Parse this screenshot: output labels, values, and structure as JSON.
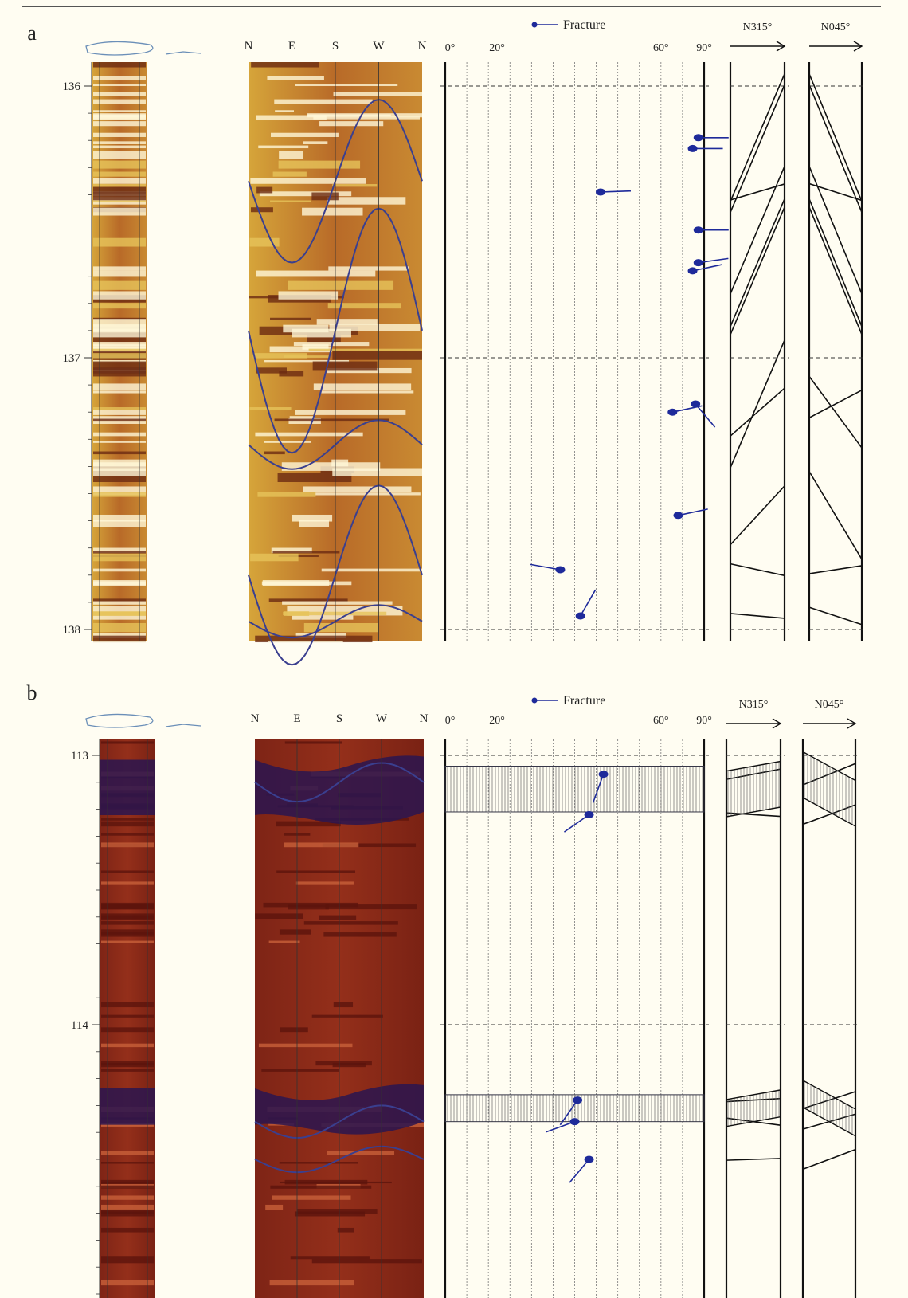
{
  "panels": [
    {
      "id": "a",
      "label": "a",
      "depth_labels": [
        "136",
        "137",
        "138"
      ],
      "depth_top": 135.93,
      "depth_bottom": 138.05,
      "compass": [
        "N",
        "E",
        "S",
        "W",
        "N"
      ],
      "dip_ticks": [
        "0°",
        "20°",
        "60°",
        "90°"
      ],
      "legend_label": "Fracture",
      "azimuth_labels": [
        "N315°",
        "N045°"
      ],
      "image_theme": "yellow-brown",
      "fractures": [
        {
          "depth": 136.19,
          "dip": 88,
          "azimuth": 90
        },
        {
          "depth": 136.23,
          "dip": 86,
          "azimuth": 90
        },
        {
          "depth": 136.39,
          "dip": 54,
          "azimuth": 88
        },
        {
          "depth": 136.53,
          "dip": 88,
          "azimuth": 90
        },
        {
          "depth": 136.65,
          "dip": 88,
          "azimuth": 82
        },
        {
          "depth": 136.68,
          "dip": 86,
          "azimuth": 78
        },
        {
          "depth": 137.17,
          "dip": 87,
          "azimuth": 140
        },
        {
          "depth": 137.2,
          "dip": 79,
          "azimuth": 78
        },
        {
          "depth": 137.58,
          "dip": 81,
          "azimuth": 78
        },
        {
          "depth": 137.78,
          "dip": 40,
          "azimuth": 280
        },
        {
          "depth": 137.95,
          "dip": 47,
          "azimuth": 30
        }
      ]
    },
    {
      "id": "b",
      "label": "b",
      "depth_labels": [
        "113",
        "114"
      ],
      "depth_top": 112.99,
      "depth_bottom": 114.76,
      "compass": [
        "N",
        "E",
        "S",
        "W",
        "N"
      ],
      "dip_ticks": [
        "0°",
        "20°",
        "60°",
        "90°"
      ],
      "legend_label": "Fracture",
      "azimuth_labels": [
        "N315°",
        "N045°"
      ],
      "image_theme": "dark-red",
      "fractures": [
        {
          "depth": 113.07,
          "dip": 55,
          "azimuth": 200
        },
        {
          "depth": 113.22,
          "dip": 50,
          "azimuth": 235
        },
        {
          "depth": 114.28,
          "dip": 46,
          "azimuth": 215
        },
        {
          "depth": 114.36,
          "dip": 45,
          "azimuth": 250
        },
        {
          "depth": 114.5,
          "dip": 50,
          "azimuth": 220
        }
      ],
      "shaded_intervals": [
        [
          113.04,
          113.21
        ],
        [
          114.26,
          114.36
        ]
      ]
    }
  ],
  "colors": {
    "background": "#fffdf2",
    "fracture": "#1e2a9a",
    "dark_band": "#2a1550",
    "sinusoid": "#3a3f8f"
  }
}
